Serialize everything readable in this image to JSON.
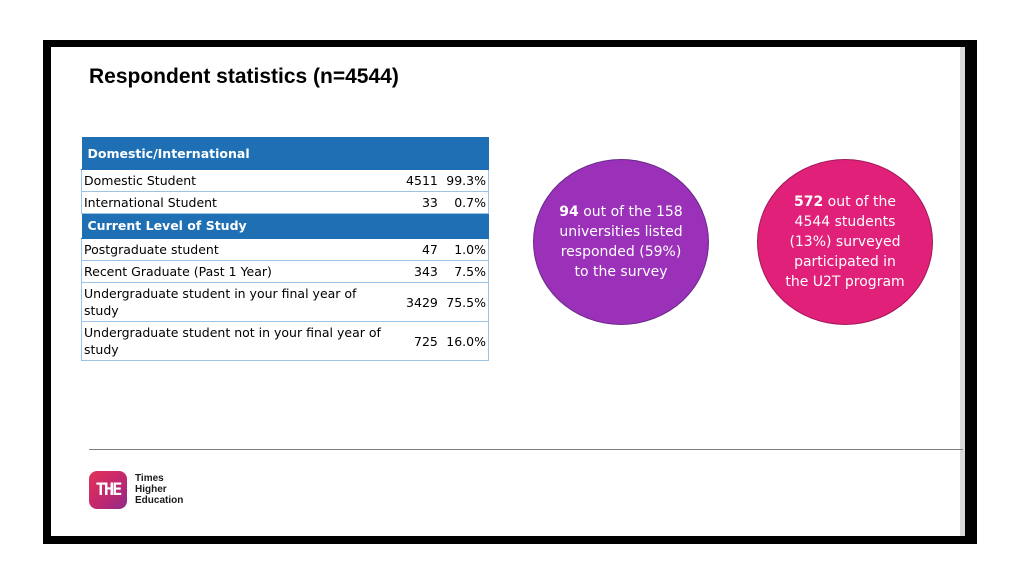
{
  "title": "Respondent statistics (n=4544)",
  "table": {
    "sections": [
      {
        "header": "Domestic/International",
        "rows": [
          {
            "label": "Domestic Student",
            "count": "4511",
            "percent": "99.3%"
          },
          {
            "label": "International Student",
            "count": "33",
            "percent": "0.7%"
          }
        ]
      },
      {
        "header": "Current Level of Study",
        "rows": [
          {
            "label": "Postgraduate student",
            "count": "47",
            "percent": "1.0%"
          },
          {
            "label": "Recent Graduate (Past 1 Year)",
            "count": "343",
            "percent": "7.5%"
          },
          {
            "label": "Undergraduate student in your final year of study",
            "count": "3429",
            "percent": "75.5%"
          },
          {
            "label": "Undergraduate student not in your final year of study",
            "count": "725",
            "percent": "16.0%"
          }
        ]
      }
    ]
  },
  "circles": {
    "universities": {
      "highlight": "94",
      "text": " out of the 158 universities listed responded (59%) to the survey",
      "color": "#9b30b9"
    },
    "students": {
      "highlight": "572",
      "text": " out of the 4544 students (13%) surveyed participated in the U2T program",
      "color": "#e1207a"
    }
  },
  "logo": {
    "mark": "THE",
    "line1": "Times",
    "line2": "Higher",
    "line3": "Education"
  },
  "colors": {
    "table_header": "#1f6fb5",
    "table_border": "#9dc3e6"
  }
}
